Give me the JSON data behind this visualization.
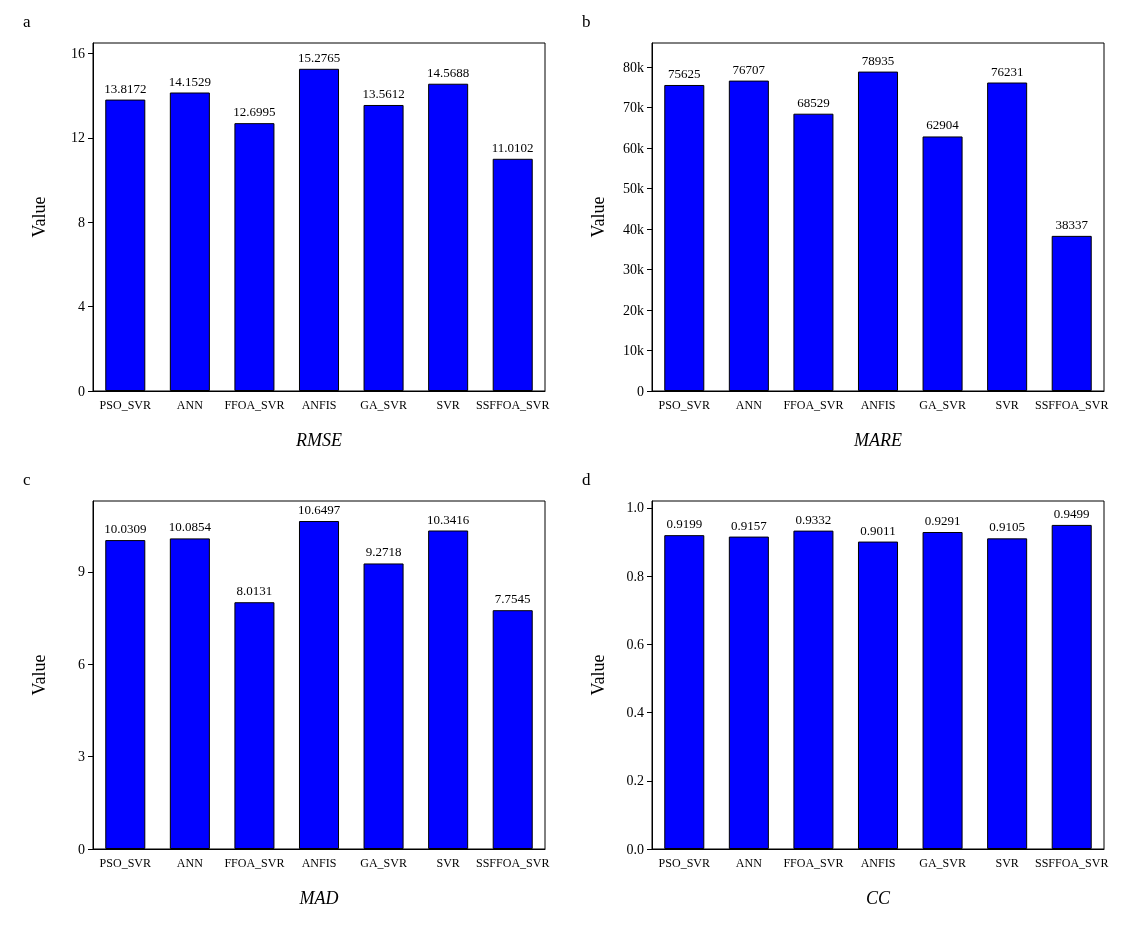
{
  "chart_data": [
    {
      "type": "bar",
      "title": "a",
      "xlabel": "RMSE",
      "ylabel": "Value",
      "categories": [
        "PSO_SVR",
        "ANN",
        "FFOA_SVR",
        "ANFIS",
        "GA_SVR",
        "SVR",
        "SSFFOA_SVR"
      ],
      "values": [
        13.8172,
        14.1529,
        12.6995,
        15.2765,
        13.5612,
        14.5688,
        11.0102
      ],
      "color": "#0000ff",
      "ylim": [
        0,
        16.5
      ],
      "yticks": [
        0,
        4,
        8,
        12,
        16
      ],
      "data_labels": true
    },
    {
      "type": "bar",
      "title": "b",
      "xlabel": "MARE",
      "ylabel": "Value",
      "categories": [
        "PSO_SVR",
        "ANN",
        "FFOA_SVR",
        "ANFIS",
        "GA_SVR",
        "SVR",
        "SSFFOA_SVR"
      ],
      "values": [
        75625,
        76707,
        68529,
        78935,
        62904,
        76231,
        38337
      ],
      "color": "#0000ff",
      "ylim": [
        0,
        86000
      ],
      "yticks": [
        0,
        {
          "value": 10000,
          "label": "10k"
        },
        {
          "value": 20000,
          "label": "20k"
        },
        {
          "value": 30000,
          "label": "30k"
        },
        {
          "value": 40000,
          "label": "40k"
        },
        {
          "value": 50000,
          "label": "50k"
        },
        {
          "value": 60000,
          "label": "60k"
        },
        {
          "value": 70000,
          "label": "70k"
        },
        {
          "value": 80000,
          "label": "80k"
        }
      ],
      "data_labels": true
    },
    {
      "type": "bar",
      "title": "c",
      "xlabel": "MAD",
      "ylabel": "Value",
      "categories": [
        "PSO_SVR",
        "ANN",
        "FFOA_SVR",
        "ANFIS",
        "GA_SVR",
        "SVR",
        "SSFFOA_SVR"
      ],
      "values": [
        10.0309,
        10.0854,
        8.0131,
        10.6497,
        9.2718,
        10.3416,
        7.7545
      ],
      "color": "#0000ff",
      "ylim": [
        0,
        11.3
      ],
      "yticks": [
        0,
        3,
        6,
        9
      ],
      "data_labels": true
    },
    {
      "type": "bar",
      "title": "d",
      "xlabel": "CC",
      "ylabel": "Value",
      "categories": [
        "PSO_SVR",
        "ANN",
        "FFOA_SVR",
        "ANFIS",
        "GA_SVR",
        "SVR",
        "SSFFOA_SVR"
      ],
      "values": [
        0.9199,
        0.9157,
        0.9332,
        0.9011,
        0.9291,
        0.9105,
        0.9499
      ],
      "color": "#0000ff",
      "ylim": [
        0,
        1.02
      ],
      "yticks": [
        {
          "value": 0,
          "label": "0.0"
        },
        {
          "value": 0.2,
          "label": "0.2"
        },
        {
          "value": 0.4,
          "label": "0.4"
        },
        {
          "value": 0.6,
          "label": "0.6"
        },
        {
          "value": 0.8,
          "label": "0.8"
        },
        {
          "value": 1,
          "label": "1.0"
        }
      ],
      "data_labels": true
    }
  ]
}
